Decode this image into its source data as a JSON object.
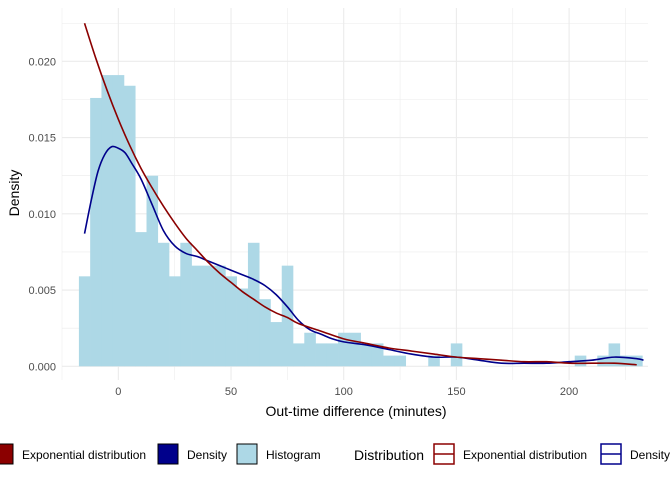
{
  "chart_data": {
    "type": "bar",
    "xlabel": "Out-time difference (minutes)",
    "ylabel": "Density",
    "xlim": [
      -25,
      235
    ],
    "ylim": [
      -0.0009,
      0.0235
    ],
    "x_ticks": [
      0,
      50,
      100,
      150,
      200
    ],
    "x_tick_labels": [
      "0",
      "50",
      "100",
      "150",
      "200"
    ],
    "y_ticks": [
      0,
      0.005,
      0.01,
      0.015,
      0.02
    ],
    "y_tick_labels": [
      "0.000",
      "0.005",
      "0.010",
      "0.015",
      "0.020"
    ],
    "grid": true,
    "legend_position": "bottom",
    "colors": {
      "histogram_fill": "#add8e6",
      "density": "#00008b",
      "exponential": "#8b0000",
      "grid": "#ebebeb"
    },
    "histogram": {
      "name": "Histogram",
      "bin_width": 5,
      "bins": [
        {
          "x0": -17.5,
          "x1": -12.5,
          "density": 0.0059
        },
        {
          "x0": -12.5,
          "x1": -7.5,
          "density": 0.0176
        },
        {
          "x0": -7.5,
          "x1": -2.5,
          "density": 0.0191
        },
        {
          "x0": -2.5,
          "x1": 2.5,
          "density": 0.0191
        },
        {
          "x0": 2.5,
          "x1": 7.5,
          "density": 0.0184
        },
        {
          "x0": 7.5,
          "x1": 12.5,
          "density": 0.0088
        },
        {
          "x0": 12.5,
          "x1": 17.5,
          "density": 0.0125
        },
        {
          "x0": 17.5,
          "x1": 22.5,
          "density": 0.0081
        },
        {
          "x0": 22.5,
          "x1": 27.5,
          "density": 0.0059
        },
        {
          "x0": 27.5,
          "x1": 32.5,
          "density": 0.0081
        },
        {
          "x0": 32.5,
          "x1": 37.5,
          "density": 0.0066
        },
        {
          "x0": 37.5,
          "x1": 42.5,
          "density": 0.0066
        },
        {
          "x0": 42.5,
          "x1": 47.5,
          "density": 0.0066
        },
        {
          "x0": 47.5,
          "x1": 52.5,
          "density": 0.0059
        },
        {
          "x0": 52.5,
          "x1": 57.5,
          "density": 0.0051
        },
        {
          "x0": 57.5,
          "x1": 62.5,
          "density": 0.0081
        },
        {
          "x0": 62.5,
          "x1": 67.5,
          "density": 0.0044
        },
        {
          "x0": 67.5,
          "x1": 72.5,
          "density": 0.0029
        },
        {
          "x0": 72.5,
          "x1": 77.5,
          "density": 0.0066
        },
        {
          "x0": 77.5,
          "x1": 82.5,
          "density": 0.0015
        },
        {
          "x0": 82.5,
          "x1": 87.5,
          "density": 0.0022
        },
        {
          "x0": 87.5,
          "x1": 92.5,
          "density": 0.0015
        },
        {
          "x0": 92.5,
          "x1": 97.5,
          "density": 0.0015
        },
        {
          "x0": 97.5,
          "x1": 102.5,
          "density": 0.0022
        },
        {
          "x0": 102.5,
          "x1": 107.5,
          "density": 0.0022
        },
        {
          "x0": 107.5,
          "x1": 112.5,
          "density": 0.0015
        },
        {
          "x0": 112.5,
          "x1": 117.5,
          "density": 0.0015
        },
        {
          "x0": 117.5,
          "x1": 122.5,
          "density": 0.0007
        },
        {
          "x0": 122.5,
          "x1": 127.5,
          "density": 0.0007
        },
        {
          "x0": 137.5,
          "x1": 142.5,
          "density": 0.0007
        },
        {
          "x0": 147.5,
          "x1": 152.5,
          "density": 0.0015
        },
        {
          "x0": 202.5,
          "x1": 207.5,
          "density": 0.0007
        },
        {
          "x0": 212.5,
          "x1": 217.5,
          "density": 0.0007
        },
        {
          "x0": 217.5,
          "x1": 222.5,
          "density": 0.0015
        },
        {
          "x0": 222.5,
          "x1": 227.5,
          "density": 0.0007
        },
        {
          "x0": 227.5,
          "x1": 232.5,
          "density": 0.0007
        }
      ]
    },
    "series": [
      {
        "name": "Density",
        "type": "line",
        "x": [
          -15,
          -12,
          -9,
          -6,
          -3,
          0,
          3,
          6,
          10,
          15,
          20,
          25,
          30,
          35,
          40,
          45,
          50,
          55,
          60,
          65,
          70,
          75,
          80,
          85,
          90,
          95,
          100,
          110,
          120,
          130,
          140,
          150,
          160,
          170,
          180,
          190,
          200,
          210,
          220,
          230,
          233
        ],
        "y": [
          0.0087,
          0.0109,
          0.0128,
          0.0139,
          0.0144,
          0.0143,
          0.014,
          0.0133,
          0.0123,
          0.0106,
          0.0089,
          0.0079,
          0.0074,
          0.0072,
          0.0069,
          0.0066,
          0.0063,
          0.006,
          0.0057,
          0.0053,
          0.0047,
          0.0039,
          0.003,
          0.0024,
          0.0021,
          0.0018,
          0.0016,
          0.0014,
          0.0011,
          0.0008,
          0.0006,
          0.0006,
          0.0004,
          0.0002,
          0.0002,
          0.0002,
          0.0003,
          0.0004,
          0.0006,
          0.0005,
          0.0004
        ]
      },
      {
        "name": "Exponential distribution",
        "type": "line",
        "x": [
          -15,
          -10,
          -5,
          0,
          5,
          10,
          15,
          20,
          25,
          30,
          35,
          40,
          45,
          50,
          55,
          60,
          65,
          70,
          75,
          80,
          90,
          100,
          110,
          120,
          130,
          140,
          150,
          160,
          170,
          180,
          190,
          200,
          210,
          220,
          230
        ],
        "y": [
          0.0225,
          0.0202,
          0.0181,
          0.0162,
          0.0145,
          0.013,
          0.0117,
          0.0105,
          0.0094,
          0.0084,
          0.0076,
          0.0068,
          0.0061,
          0.0055,
          0.0049,
          0.0044,
          0.0039,
          0.0035,
          0.0032,
          0.0028,
          0.0023,
          0.0018,
          0.0015,
          0.0012,
          0.001,
          0.0008,
          0.0006,
          0.0005,
          0.0004,
          0.0003,
          0.0003,
          0.0002,
          0.0002,
          0.0002,
          0.0001
        ]
      }
    ]
  },
  "legend": {
    "fill_keys": [
      {
        "label": "Exponential distribution",
        "color": "#8b0000"
      },
      {
        "label": "Density",
        "color": "#00008b"
      },
      {
        "label": "Histogram",
        "color": "#add8e6"
      }
    ],
    "title": "Distribution",
    "line_keys": [
      {
        "label": "Exponential distribution",
        "color": "#8b0000"
      },
      {
        "label": "Density",
        "color": "#00008b"
      }
    ]
  }
}
